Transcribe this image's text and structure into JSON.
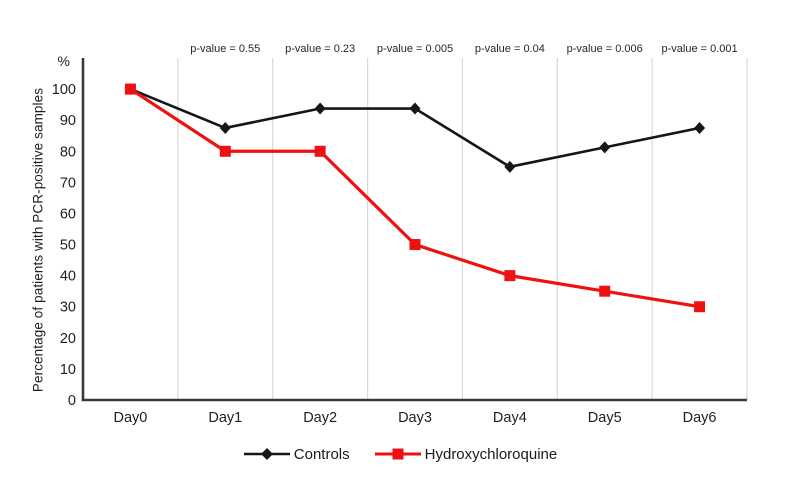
{
  "chart_data": {
    "type": "line",
    "title": "",
    "xlabel": "",
    "ylabel": "Percentage of patients with PCR-positive samples",
    "y_unit_symbol": "%",
    "categories": [
      "Day0",
      "Day1",
      "Day2",
      "Day3",
      "Day4",
      "Day5",
      "Day6"
    ],
    "series": [
      {
        "name": "Controls",
        "marker": "diamond",
        "color": "#161616",
        "values": [
          100,
          87.5,
          93.75,
          93.75,
          75,
          81.25,
          87.5
        ]
      },
      {
        "name": "Hydroxychloroquine",
        "marker": "square",
        "color": "#ee1111",
        "values": [
          100,
          80,
          80,
          50,
          40,
          35,
          30
        ]
      }
    ],
    "annotations": [
      {
        "text": "p-value = 0.55",
        "above_category": "Day1"
      },
      {
        "text": "p-value = 0.23",
        "above_category": "Day2"
      },
      {
        "text": "p-value = 0.005",
        "above_category": "Day3"
      },
      {
        "text": "p-value = 0.04",
        "above_category": "Day4"
      },
      {
        "text": "p-value = 0.006",
        "above_category": "Day5"
      },
      {
        "text": "p-value = 0.001",
        "above_category": "Day6"
      }
    ],
    "yticks": [
      0,
      10,
      20,
      30,
      40,
      50,
      60,
      70,
      80,
      90,
      100
    ],
    "ylim": [
      0,
      110
    ],
    "grid": "vertical-category-boundaries",
    "legend_position": "bottom-center",
    "style": {
      "grid_color": "#d9d9d9",
      "axis_color": "#3a3a3a",
      "tick_text_color": "#1f1f1f",
      "annotation_text_color": "#262626"
    }
  }
}
